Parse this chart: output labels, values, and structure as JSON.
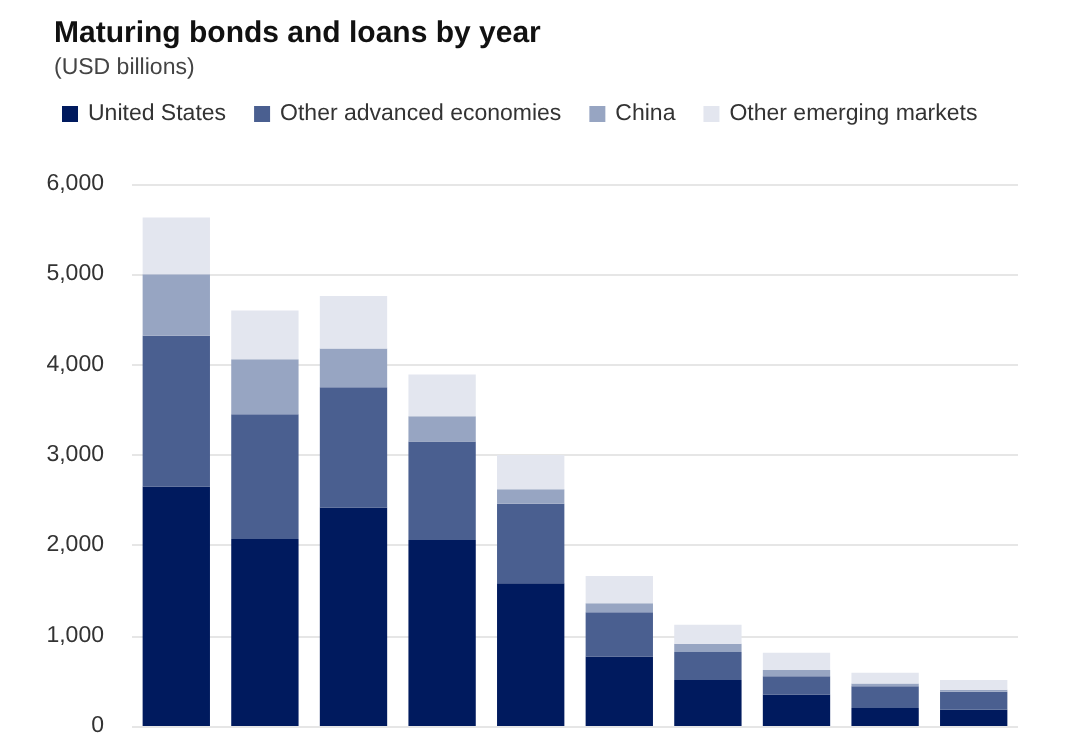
{
  "chart_data": {
    "type": "bar",
    "title": "Maturing bonds and loans by year",
    "subtitle": "(USD billions)",
    "stacked": true,
    "grid": "y",
    "legend": "top left",
    "categories": [
      null,
      null,
      null,
      null,
      null,
      null,
      null,
      null,
      null,
      null
    ],
    "series": [
      {
        "name": "United States",
        "color": "#001a5e",
        "values": [
          2650,
          2070,
          2420,
          2060,
          1580,
          770,
          510,
          350,
          200,
          180
        ]
      },
      {
        "name": "Other advanced economies",
        "color": "#4a5f90",
        "values": [
          1670,
          1380,
          1330,
          1090,
          880,
          490,
          310,
          200,
          240,
          200
        ]
      },
      {
        "name": "China",
        "color": "#97a5c2",
        "values": [
          680,
          610,
          430,
          280,
          160,
          100,
          90,
          70,
          30,
          20
        ]
      },
      {
        "name": "Other emerging markets",
        "color": "#e3e6ef",
        "values": [
          630,
          540,
          580,
          460,
          380,
          300,
          210,
          190,
          120,
          110
        ]
      }
    ],
    "ylim": [
      0,
      6000
    ],
    "yticks": [
      {
        "value": 0,
        "label": "0"
      },
      {
        "value": 1000,
        "label": "1,000"
      },
      {
        "value": 2000,
        "label": "2,000"
      },
      {
        "value": 3000,
        "label": "3,000"
      },
      {
        "value": 4000,
        "label": "4,000"
      },
      {
        "value": 5000,
        "label": "5,000"
      },
      {
        "value": 6000,
        "label": "6,000"
      }
    ]
  }
}
